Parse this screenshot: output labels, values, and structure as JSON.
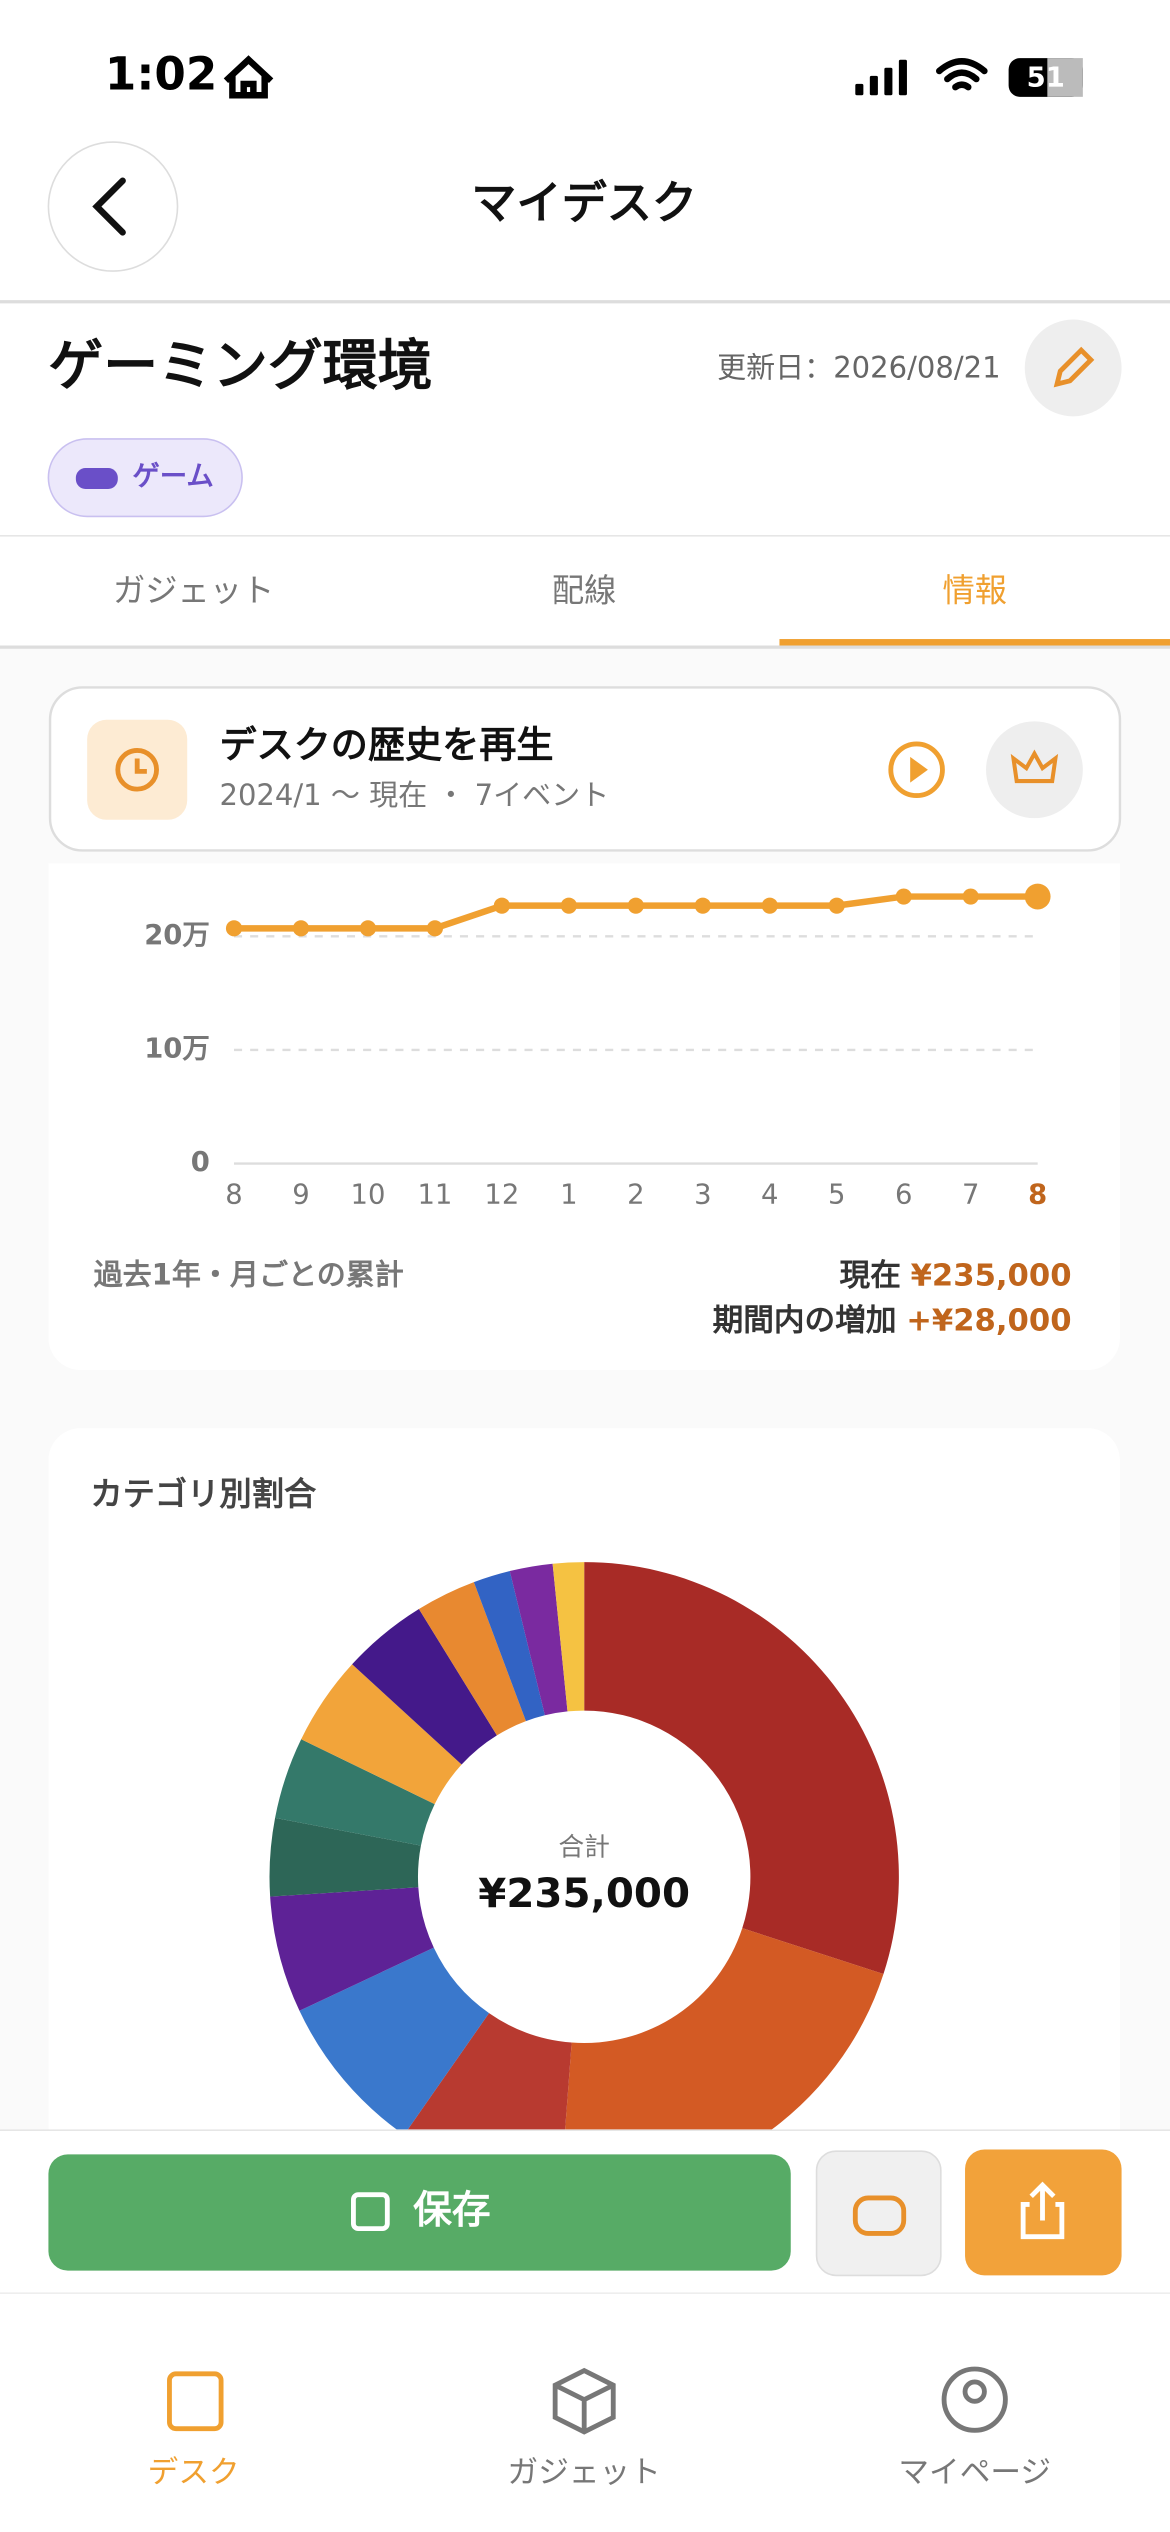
{
  "status_bar": {
    "time": "1:02",
    "battery": "51"
  },
  "header": {
    "title": "マイデスク"
  },
  "desk": {
    "name": "ゲーミング環境",
    "updated": "更新日：2026/08/21",
    "tag": "ゲーム"
  },
  "tabs": [
    "ガジェット",
    "配線",
    "情報"
  ],
  "history_card": {
    "title": "デスクの歴史を再生",
    "subtitle": "2024/1 〜 現在 ・ 7イベント"
  },
  "chart_data": [
    {
      "type": "line",
      "categories": [
        "8",
        "9",
        "10",
        "11",
        "12",
        "1",
        "2",
        "3",
        "4",
        "5",
        "6",
        "7",
        "8"
      ],
      "values": [
        207000,
        207000,
        207000,
        207000,
        227000,
        227000,
        227000,
        227000,
        227000,
        227000,
        235000,
        235000,
        235000
      ],
      "color": "#f0a030",
      "ylim": [
        0,
        250000
      ],
      "yticks": [
        0,
        {
          "value": 100000,
          "label": "10万"
        },
        {
          "value": 200000,
          "label": "20万"
        }
      ],
      "grid": true,
      "caption": "過去1年・月ごとの累計",
      "current_label": "現在",
      "current_value": "¥235,000",
      "increase_label": "期間内の増加",
      "increase_value": "+¥28,000"
    },
    {
      "type": "donut",
      "title": "カテゴリ別割合",
      "center_label": "合計",
      "center_value": "¥235,000",
      "values": [
        30,
        21.2,
        8.5,
        8.3,
        6,
        4,
        4.2,
        4.6,
        4.4,
        3.1,
        1.9,
        2.2,
        1.6
      ],
      "colors": [
        "#a82b26",
        "#d35a24",
        "#b83a30",
        "#3a78cc",
        "#5e2296",
        "#2d6657",
        "#34796a",
        "#f2a43a",
        "#44198a",
        "#e88930",
        "#3263c4",
        "#7a2aa0",
        "#f5c242"
      ]
    }
  ],
  "actions": {
    "save": "保存"
  },
  "nav": [
    "デスク",
    "ガジェット",
    "マイページ"
  ]
}
